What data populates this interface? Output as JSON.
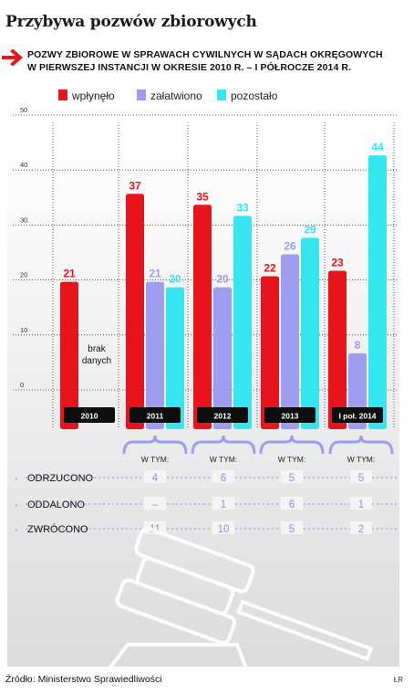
{
  "title": "Przybywa pozwów zbiorowych",
  "subtitle_line1": "Pozwy zbiorowe w sprawach cywilnych w sądach okręgowych",
  "subtitle_line2": "w pierwszej instancji w okresie 2010 r. – I półrocze 2014 r.",
  "source": "Źródło: Ministerstwo Sprawiedliwości",
  "author": "ŁR",
  "colors": {
    "wplynelo": "#e8141c",
    "zalatwiono": "#9f9df0",
    "pozostalo": "#35e6f0"
  },
  "chart_data": {
    "type": "bar",
    "categories": [
      "2010",
      "2011",
      "2012",
      "2013",
      "I poł. 2014"
    ],
    "series": [
      {
        "name": "wpłynęło",
        "values": [
          21,
          37,
          35,
          22,
          23
        ]
      },
      {
        "name": "załatwiono",
        "values": [
          null,
          21,
          20,
          26,
          8
        ]
      },
      {
        "name": "pozostało",
        "values": [
          null,
          20,
          33,
          29,
          44
        ]
      }
    ],
    "yticks": [
      "50",
      "40",
      "30",
      "20",
      "10",
      "0"
    ],
    "ylim": [
      0,
      50
    ],
    "grid": true,
    "legend_position": "top-left",
    "annotation": {
      "line1": "brak",
      "line2": "danych"
    }
  },
  "breakdown": {
    "header": "W TYM:",
    "rows": [
      {
        "label": "ODRZUCONO",
        "values": [
          "4",
          "6",
          "5",
          "5"
        ]
      },
      {
        "label": "ODDALONO",
        "values": [
          "–",
          "1",
          "6",
          "1"
        ]
      },
      {
        "label": "ZWRÓCONO",
        "values": [
          "11",
          "10",
          "5",
          "2"
        ]
      }
    ]
  }
}
